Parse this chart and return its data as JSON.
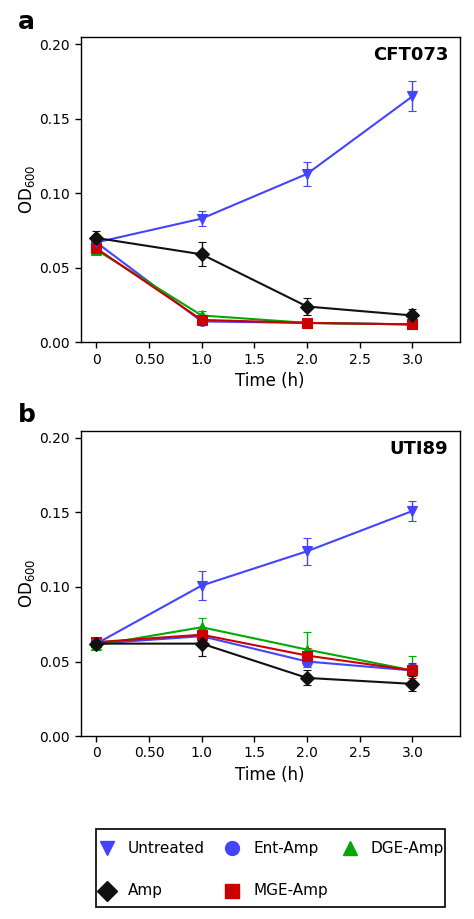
{
  "time": [
    0,
    1,
    2,
    3
  ],
  "panel_a": {
    "title": "CFT073",
    "untreated": {
      "y": [
        0.067,
        0.083,
        0.113,
        0.165
      ],
      "yerr": [
        0.005,
        0.005,
        0.008,
        0.01
      ]
    },
    "ent_amp": {
      "y": [
        0.067,
        0.014,
        0.013,
        0.012
      ],
      "yerr": [
        0.004,
        0.002,
        0.002,
        0.002
      ]
    },
    "dge_amp": {
      "y": [
        0.062,
        0.018,
        0.013,
        0.012
      ],
      "yerr": [
        0.003,
        0.003,
        0.002,
        0.002
      ]
    },
    "amp": {
      "y": [
        0.07,
        0.059,
        0.024,
        0.018
      ],
      "yerr": [
        0.005,
        0.008,
        0.006,
        0.004
      ]
    },
    "mge_amp": {
      "y": [
        0.063,
        0.015,
        0.013,
        0.012
      ],
      "yerr": [
        0.003,
        0.002,
        0.002,
        0.002
      ]
    }
  },
  "panel_b": {
    "title": "UTI89",
    "untreated": {
      "y": [
        0.062,
        0.101,
        0.124,
        0.151
      ],
      "yerr": [
        0.003,
        0.01,
        0.009,
        0.007
      ]
    },
    "ent_amp": {
      "y": [
        0.062,
        0.067,
        0.05,
        0.044
      ],
      "yerr": [
        0.003,
        0.004,
        0.004,
        0.004
      ]
    },
    "dge_amp": {
      "y": [
        0.061,
        0.073,
        0.058,
        0.044
      ],
      "yerr": [
        0.003,
        0.006,
        0.012,
        0.01
      ]
    },
    "amp": {
      "y": [
        0.062,
        0.062,
        0.039,
        0.035
      ],
      "yerr": [
        0.003,
        0.008,
        0.005,
        0.005
      ]
    },
    "mge_amp": {
      "y": [
        0.063,
        0.068,
        0.054,
        0.044
      ],
      "yerr": [
        0.003,
        0.005,
        0.005,
        0.005
      ]
    }
  },
  "colors": {
    "untreated": "#4444ff",
    "ent_amp": "#4444ff",
    "dge_amp": "#00aa00",
    "amp": "#111111",
    "mge_amp": "#cc0000"
  },
  "markers": {
    "untreated": "v",
    "ent_amp": "o",
    "dge_amp": "^",
    "amp": "D",
    "mge_amp": "s"
  },
  "ylim": [
    0.0,
    0.205
  ],
  "xlim": [
    -0.15,
    3.45
  ],
  "xlabel": "Time (h)",
  "ylabel": "OD_{600}",
  "yticks": [
    0.0,
    0.05,
    0.1,
    0.15,
    0.2
  ],
  "xticks": [
    0.0,
    0.5,
    1.0,
    1.5,
    2.0,
    2.5,
    3.0
  ],
  "xticklabels": [
    "0",
    "0.50",
    "1.0",
    "1.5",
    "2.0",
    "2.5",
    "3.0"
  ],
  "legend": {
    "untreated_label": "Untreated",
    "ent_amp_label": "Ent-Amp",
    "dge_amp_label": "DGE-Amp",
    "amp_label": "Amp",
    "mge_amp_label": "MGE-Amp"
  },
  "panel_label_a": "a",
  "panel_label_b": "b",
  "markersize": 7,
  "linewidth": 1.5,
  "capsize": 3
}
